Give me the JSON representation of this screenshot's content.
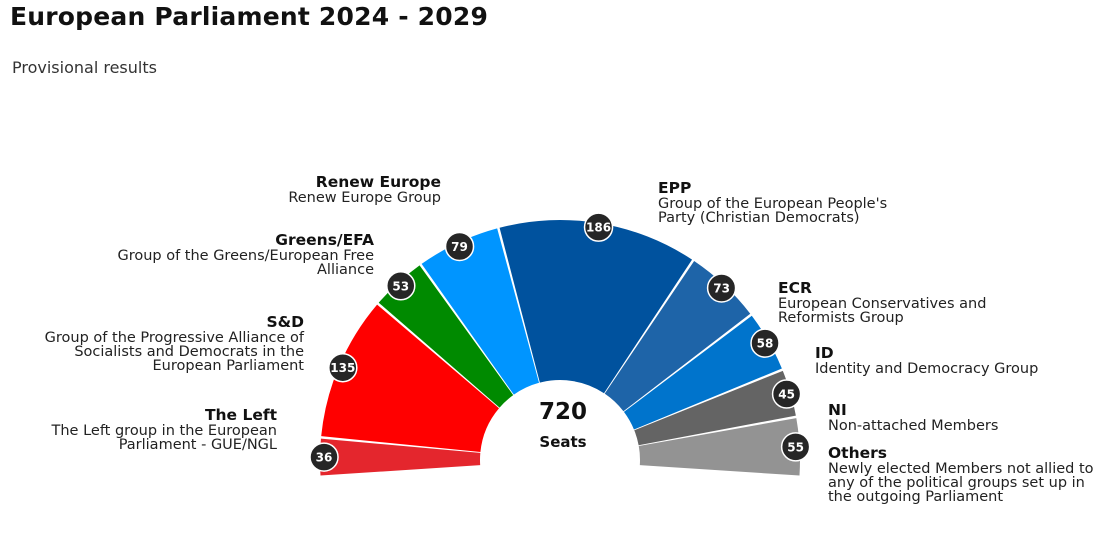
{
  "title": "European Parliament 2024 - 2029",
  "subtitle": "Provisional results",
  "chart_data": {
    "type": "pie",
    "subtype": "parliament-hemicycle",
    "total": "720",
    "total_label": "Seats",
    "series": [
      {
        "key": "others",
        "name": "Others",
        "description": "Newly elected Members not allied to any of the political groups set up in the outgoing Parliament",
        "seats": 55,
        "color": "#939393"
      },
      {
        "key": "ni",
        "name": "NI",
        "description": "Non-attached Members",
        "seats": 45,
        "color": "#646464"
      },
      {
        "key": "id",
        "name": "ID",
        "description": "Identity and Democracy Group",
        "seats": 58,
        "color": "#0074cc"
      },
      {
        "key": "ecr",
        "name": "ECR",
        "description": "European Conservatives and Reformists Group",
        "seats": 73,
        "color": "#1e64a8"
      },
      {
        "key": "epp",
        "name": "EPP",
        "description": "Group of the European People's Party (Christian Democrats)",
        "seats": 186,
        "color": "#00529e"
      },
      {
        "key": "renew",
        "name": "Renew Europe",
        "description": "Renew Europe Group",
        "seats": 79,
        "color": "#0095ff"
      },
      {
        "key": "greens",
        "name": "Greens/EFA",
        "description": "Group of the Greens/European Free Alliance",
        "seats": 53,
        "color": "#008a00"
      },
      {
        "key": "sd",
        "name": "S&D",
        "description": "Group of the Progressive Alliance of Socialists and Democrats in the European Parliament",
        "seats": 135,
        "color": "#ff0000"
      },
      {
        "key": "left",
        "name": "The Left",
        "description": "The Left group in the European Parliament - GUE/NGL",
        "seats": 36,
        "color": "#e4262d"
      }
    ],
    "badge_color": "#262626",
    "badge_text_color": "#ffffff"
  }
}
